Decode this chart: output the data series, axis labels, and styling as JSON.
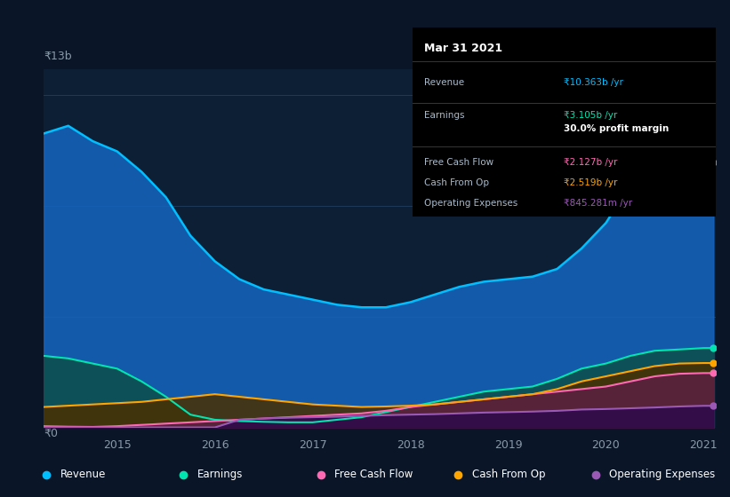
{
  "bg_color": "#0a1628",
  "plot_bg_color": "#0d1f35",
  "grid_color": "#1e3a5a",
  "title_label": "₹13b",
  "zero_label": "₹0",
  "x_ticks": [
    2015,
    2016,
    2017,
    2018,
    2019,
    2020,
    2021
  ],
  "years": [
    2014.25,
    2014.5,
    2014.75,
    2015.0,
    2015.25,
    2015.5,
    2015.75,
    2016.0,
    2016.25,
    2016.5,
    2016.75,
    2017.0,
    2017.25,
    2017.5,
    2017.75,
    2018.0,
    2018.25,
    2018.5,
    2018.75,
    2019.0,
    2019.25,
    2019.5,
    2019.75,
    2020.0,
    2020.25,
    2020.5,
    2020.75,
    2021.0,
    2021.1
  ],
  "revenue": [
    11.5,
    11.8,
    11.2,
    10.8,
    10.0,
    9.0,
    7.5,
    6.5,
    5.8,
    5.4,
    5.2,
    5.0,
    4.8,
    4.7,
    4.7,
    4.9,
    5.2,
    5.5,
    5.7,
    5.8,
    5.9,
    6.2,
    7.0,
    8.0,
    9.5,
    10.0,
    10.1,
    10.363,
    10.363
  ],
  "earnings": [
    2.8,
    2.7,
    2.5,
    2.3,
    1.8,
    1.2,
    0.5,
    0.3,
    0.25,
    0.22,
    0.2,
    0.2,
    0.3,
    0.4,
    0.6,
    0.8,
    1.0,
    1.2,
    1.4,
    1.5,
    1.6,
    1.9,
    2.3,
    2.5,
    2.8,
    3.0,
    3.05,
    3.105,
    3.105
  ],
  "free_cash_flow": [
    0.05,
    0.03,
    0.02,
    0.05,
    0.1,
    0.15,
    0.2,
    0.25,
    0.3,
    0.35,
    0.4,
    0.45,
    0.5,
    0.55,
    0.65,
    0.8,
    0.9,
    1.0,
    1.1,
    1.2,
    1.3,
    1.4,
    1.5,
    1.6,
    1.8,
    2.0,
    2.1,
    2.127,
    2.127
  ],
  "cash_from_op": [
    0.8,
    0.85,
    0.9,
    0.95,
    1.0,
    1.1,
    1.2,
    1.3,
    1.2,
    1.1,
    1.0,
    0.9,
    0.85,
    0.8,
    0.82,
    0.85,
    0.9,
    1.0,
    1.1,
    1.2,
    1.3,
    1.5,
    1.8,
    2.0,
    2.2,
    2.4,
    2.5,
    2.519,
    2.519
  ],
  "op_expenses": [
    0.0,
    0.0,
    0.0,
    0.0,
    0.0,
    0.0,
    0.0,
    0.0,
    0.3,
    0.35,
    0.38,
    0.4,
    0.42,
    0.45,
    0.48,
    0.5,
    0.52,
    0.55,
    0.58,
    0.6,
    0.62,
    0.65,
    0.7,
    0.72,
    0.75,
    0.78,
    0.82,
    0.845,
    0.845
  ],
  "revenue_color": "#00bfff",
  "revenue_fill": "#1565c0",
  "earnings_color": "#00e5b0",
  "earnings_fill": "#0d4f4f",
  "fcf_color": "#ff69b4",
  "fcf_fill": "#5c2040",
  "cashop_color": "#ffa500",
  "cashop_fill": "#4a3000",
  "opex_color": "#9b59b6",
  "opex_fill": "#2d0a4a",
  "info_box": {
    "title": "Mar 31 2021",
    "rows": [
      {
        "label": "Revenue",
        "value": "₹10.363b /yr",
        "value_color": "#00bfff"
      },
      {
        "label": "Earnings",
        "value": "₹3.105b /yr",
        "value_color": "#00e5b0"
      },
      {
        "label": "",
        "value": "30.0% profit margin",
        "value_color": "#ffffff",
        "bold": true
      },
      {
        "label": "Free Cash Flow",
        "value": "₹2.127b /yr",
        "value_color": "#ff69b4"
      },
      {
        "label": "Cash From Op",
        "value": "₹2.519b /yr",
        "value_color": "#ffa500"
      },
      {
        "label": "Operating Expenses",
        "value": "₹845.281m /yr",
        "value_color": "#9b59b6"
      }
    ]
  },
  "legend_items": [
    {
      "label": "Revenue",
      "color": "#00bfff"
    },
    {
      "label": "Earnings",
      "color": "#00e5b0"
    },
    {
      "label": "Free Cash Flow",
      "color": "#ff69b4"
    },
    {
      "label": "Cash From Op",
      "color": "#ffa500"
    },
    {
      "label": "Operating Expenses",
      "color": "#9b59b6"
    }
  ]
}
